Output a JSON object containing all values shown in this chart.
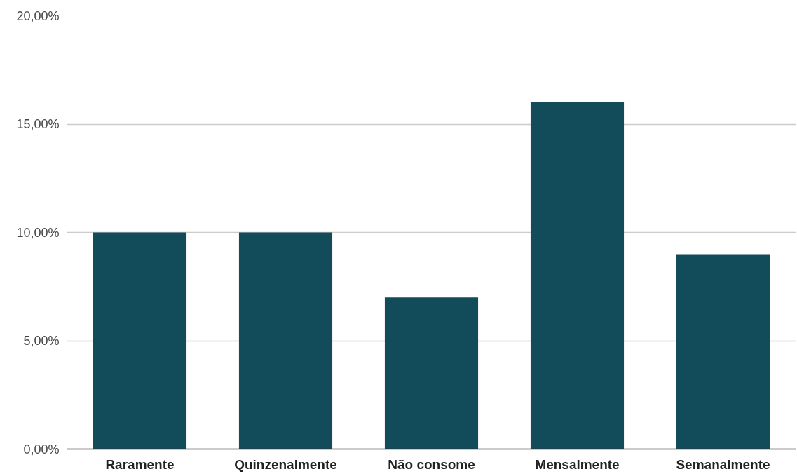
{
  "chart_data": {
    "type": "bar",
    "categories": [
      "Raramente",
      "Quinzenalmente",
      "Não consome",
      "Mensalmente",
      "Semanalmente"
    ],
    "values": [
      10,
      10,
      7,
      16,
      9
    ],
    "color": "#124b5a",
    "ylim": [
      0,
      20
    ],
    "yticks": [
      {
        "value": 0,
        "label": "0,00%"
      },
      {
        "value": 5,
        "label": "5,00%"
      },
      {
        "value": 10,
        "label": "10,00%"
      },
      {
        "value": 15,
        "label": "15,00%"
      },
      {
        "value": 20,
        "label": "20,00%"
      }
    ],
    "grid": "y"
  }
}
